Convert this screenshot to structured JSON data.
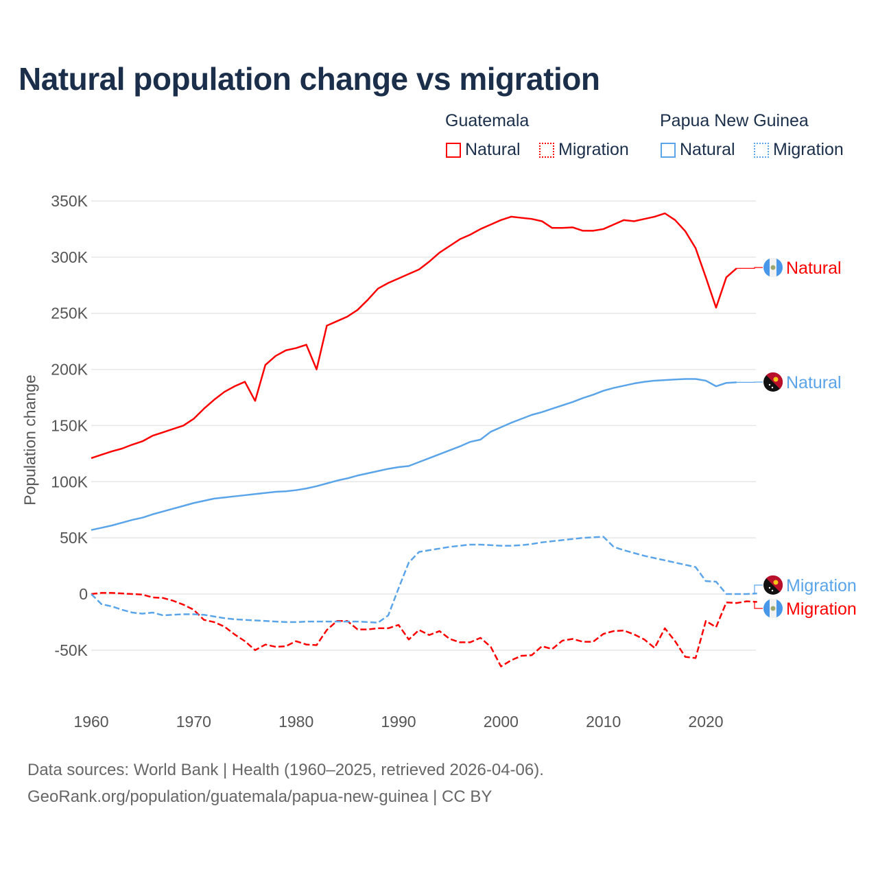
{
  "chart_data": {
    "type": "line",
    "title": "Natural population change vs migration",
    "xlabel": "",
    "ylabel": "Population change",
    "xlim": [
      1960,
      2025
    ],
    "ylim": [
      -50000,
      350000
    ],
    "y_ticks": [
      {
        "value": 350000,
        "label": "350K"
      },
      {
        "value": 300000,
        "label": "300K"
      },
      {
        "value": 250000,
        "label": "250K"
      },
      {
        "value": 200000,
        "label": "200K"
      },
      {
        "value": 150000,
        "label": "150K"
      },
      {
        "value": 100000,
        "label": "100K"
      },
      {
        "value": 50000,
        "label": "50K"
      },
      {
        "value": 0,
        "label": "0"
      },
      {
        "value": -50000,
        "label": "-50K"
      }
    ],
    "x_ticks": [
      {
        "value": 1960,
        "label": "1960"
      },
      {
        "value": 1970,
        "label": "1970"
      },
      {
        "value": 1980,
        "label": "1980"
      },
      {
        "value": 1990,
        "label": "1990"
      },
      {
        "value": 2000,
        "label": "2000"
      },
      {
        "value": 2010,
        "label": "2010"
      },
      {
        "value": 2020,
        "label": "2020"
      }
    ],
    "grid": true,
    "legend": {
      "placement": "top-right",
      "groups": [
        {
          "name": "Guatemala",
          "items": [
            "Natural",
            "Migration"
          ],
          "color": "#ff0000"
        },
        {
          "name": "Papua New Guinea",
          "items": [
            "Natural",
            "Migration"
          ],
          "color": "#5aa4ea"
        }
      ]
    },
    "series": [
      {
        "name": "Natural",
        "country": "Guatemala",
        "color": "#ff0000",
        "dash": "solid",
        "end_label": "Natural",
        "start_year": 1960,
        "values": [
          121000,
          124000,
          127000,
          129500,
          133000,
          136000,
          141000,
          144000,
          147000,
          150000,
          156000,
          165000,
          173000,
          180000,
          185000,
          189000,
          172000,
          204000,
          212000,
          217000,
          219000,
          222000,
          200000,
          239000,
          243000,
          247000,
          253000,
          262000,
          272000,
          277000,
          281000,
          285000,
          289000,
          296000,
          304000,
          310000,
          316000,
          320000,
          325000,
          329000,
          333000,
          336000,
          335000,
          334000,
          332000,
          326000,
          326000,
          326500,
          323500,
          323500,
          325000,
          329000,
          333000,
          332000,
          334000,
          336000,
          339000,
          333000,
          323000,
          308000,
          282000,
          255000,
          282000,
          290000
        ]
      },
      {
        "name": "Migration",
        "country": "Guatemala",
        "color": "#ff0000",
        "dash": "dashed",
        "end_label": "Migration",
        "start_year": 1960,
        "values": [
          0,
          1000,
          1000,
          500,
          0,
          -500,
          -3000,
          -3500,
          -6000,
          -9500,
          -14000,
          -23000,
          -25000,
          -29000,
          -36000,
          -42000,
          -50000,
          -45000,
          -47000,
          -46500,
          -42000,
          -45000,
          -45500,
          -32000,
          -24000,
          -24000,
          -31500,
          -31500,
          -30500,
          -30500,
          -27500,
          -40500,
          -32000,
          -36500,
          -33000,
          -40000,
          -43000,
          -43000,
          -39000,
          -47000,
          -64500,
          -59000,
          -55000,
          -54500,
          -46500,
          -49000,
          -41500,
          -40000,
          -42500,
          -42500,
          -35500,
          -33000,
          -32500,
          -36000,
          -40500,
          -48000,
          -30500,
          -42000,
          -56000,
          -57000,
          -24000,
          -29500,
          -7500,
          -8000,
          -6500,
          -7000
        ]
      },
      {
        "name": "Natural",
        "country": "Papua New Guinea",
        "color": "#5aa4ea",
        "dash": "solid",
        "end_label": "Natural",
        "start_year": 1960,
        "values": [
          57000,
          59000,
          61000,
          63500,
          66000,
          68000,
          71000,
          73500,
          76000,
          78500,
          81000,
          83000,
          85000,
          86000,
          87000,
          88000,
          89000,
          90000,
          91000,
          91500,
          92500,
          94000,
          96000,
          98500,
          101000,
          103000,
          105500,
          107500,
          109500,
          111500,
          113000,
          114000,
          117500,
          121000,
          124500,
          128000,
          131500,
          135500,
          137500,
          144500,
          148500,
          152500,
          156000,
          159500,
          162000,
          165000,
          168000,
          171000,
          174500,
          177500,
          181000,
          183500,
          185500,
          187500,
          189000,
          190000,
          190500,
          191000,
          191500,
          191500,
          190000,
          185000,
          188000,
          188500
        ]
      },
      {
        "name": "Migration",
        "country": "Papua New Guinea",
        "color": "#5aa4ea",
        "dash": "dashed",
        "end_label": "Migration",
        "start_year": 1960,
        "values": [
          0,
          -9000,
          -11000,
          -14000,
          -16500,
          -17500,
          -16500,
          -19000,
          -18500,
          -18000,
          -18000,
          -18500,
          -20000,
          -21500,
          -22500,
          -23000,
          -23500,
          -24000,
          -24500,
          -25000,
          -25000,
          -24500,
          -24500,
          -24500,
          -24500,
          -24500,
          -24500,
          -25000,
          -25500,
          -19000,
          5000,
          28000,
          37500,
          39000,
          40500,
          42000,
          43000,
          44000,
          44000,
          43500,
          43000,
          43000,
          43500,
          44500,
          46000,
          47000,
          48000,
          49000,
          50000,
          50500,
          51000,
          42000,
          39000,
          36500,
          34000,
          32000,
          30000,
          28000,
          26000,
          24000,
          11500,
          11000,
          0,
          0,
          0,
          500
        ]
      }
    ]
  },
  "sources": {
    "line1": "Data sources: World Bank | Health (1960–2025, retrieved 2026-04-06).",
    "line2": "GeoRank.org/population/guatemala/papua-new-guinea | CC BY"
  }
}
